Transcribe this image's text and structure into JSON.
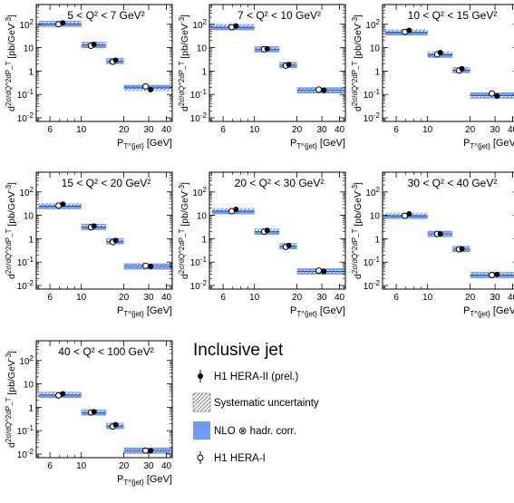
{
  "chart_data": [
    {
      "type": "scatter",
      "title": "5 < Q² < 7 GeV²",
      "xlabel": "P_T^jet [GeV]",
      "ylabel": "d²σ/dQ²dP_T [pb/GeV⁻³]",
      "x_scale": "log",
      "y_scale": "log",
      "xlim": [
        4.8,
        44
      ],
      "ylim": [
        0.007,
        700
      ],
      "x_ticks": [
        "6",
        "10",
        "20",
        "30",
        "40"
      ],
      "y_ticks": [
        "10^2",
        "10",
        "1",
        "10^-1",
        "10^-2"
      ],
      "bins": [
        [
          5,
          10
        ],
        [
          10,
          15
        ],
        [
          15,
          20
        ],
        [
          20,
          45
        ]
      ],
      "series": [
        {
          "name": "H1 HERA-II (prel.)",
          "x": [
            7.4,
            12.3,
            17.5,
            31.0
          ],
          "y": [
            115,
            14,
            2.9,
            0.16
          ]
        },
        {
          "name": "H1 HERA-I",
          "x": [
            6.9,
            11.7,
            16.7,
            28.5
          ],
          "y": [
            100,
            12,
            2.5,
            0.22
          ]
        },
        {
          "name": "NLO ⊗ hadr. corr.",
          "x": [
            7.1,
            12.1,
            17.1,
            30.0
          ],
          "y": [
            105,
            13,
            2.7,
            0.19
          ]
        }
      ]
    },
    {
      "type": "scatter",
      "title": "7 < Q² < 10 GeV²",
      "xlabel": "P_T^jet [GeV]",
      "ylabel": "d²σ/dQ²dP_T [pb/GeV⁻³]",
      "x_scale": "log",
      "y_scale": "log",
      "xlim": [
        4.8,
        44
      ],
      "ylim": [
        0.007,
        700
      ],
      "x_ticks": [
        "6",
        "10",
        "20",
        "30",
        "40"
      ],
      "y_ticks": [
        "10^2",
        "10",
        "1",
        "10^-1",
        "10^-2"
      ],
      "bins": [
        [
          5,
          10
        ],
        [
          10,
          15
        ],
        [
          15,
          20
        ],
        [
          20,
          45
        ]
      ],
      "series": [
        {
          "name": "H1 HERA-II (prel.)",
          "x": [
            7.4,
            12.3,
            17.5,
            31.0
          ],
          "y": [
            85,
            9.0,
            1.9,
            0.15
          ]
        },
        {
          "name": "H1 HERA-I",
          "x": [
            6.9,
            11.7,
            16.7,
            28.5
          ],
          "y": [
            75,
            8.5,
            1.7,
            0.16
          ]
        },
        {
          "name": "NLO ⊗ hadr. corr.",
          "x": [
            7.1,
            12.1,
            17.1,
            30.0
          ],
          "y": [
            75,
            8.5,
            1.8,
            0.15
          ]
        }
      ]
    },
    {
      "type": "scatter",
      "title": "10 < Q² < 15 GeV²",
      "xlabel": "P_T^jet [GeV]",
      "ylabel": "d²σ/dQ²dP_T [pb/GeV⁻³]",
      "x_scale": "log",
      "y_scale": "log",
      "xlim": [
        4.8,
        44
      ],
      "ylim": [
        0.007,
        700
      ],
      "x_ticks": [
        "6",
        "10",
        "20",
        "30",
        "40"
      ],
      "y_ticks": [
        "10^2",
        "10",
        "1",
        "10^-1",
        "10^-2"
      ],
      "bins": [
        [
          5,
          10
        ],
        [
          10,
          15
        ],
        [
          15,
          20
        ],
        [
          20,
          45
        ]
      ],
      "series": [
        {
          "name": "H1 HERA-II (prel.)",
          "x": [
            7.4,
            12.3,
            17.5,
            31.0
          ],
          "y": [
            55,
            6.2,
            1.25,
            0.085
          ]
        },
        {
          "name": "H1 HERA-I",
          "x": [
            6.9,
            11.7,
            16.7,
            28.5
          ],
          "y": [
            47,
            5.2,
            1.05,
            0.11
          ]
        },
        {
          "name": "NLO ⊗ hadr. corr.",
          "x": [
            7.1,
            12.1,
            17.1,
            30.0
          ],
          "y": [
            45,
            5.0,
            1.1,
            0.09
          ]
        }
      ]
    },
    {
      "type": "scatter",
      "title": "15 < Q² < 20 GeV²",
      "xlabel": "P_T^jet [GeV]",
      "ylabel": "d²σ/dQ²dP_T [pb/GeV⁻³]",
      "x_scale": "log",
      "y_scale": "log",
      "xlim": [
        4.8,
        44
      ],
      "ylim": [
        0.007,
        700
      ],
      "x_ticks": [
        "6",
        "10",
        "20",
        "30",
        "40"
      ],
      "y_ticks": [
        "10^2",
        "10",
        "1",
        "10^-1",
        "10^-2"
      ],
      "bins": [
        [
          5,
          10
        ],
        [
          10,
          15
        ],
        [
          15,
          20
        ],
        [
          20,
          45
        ]
      ],
      "series": [
        {
          "name": "H1 HERA-II (prel.)",
          "x": [
            7.4,
            12.3,
            17.5,
            31.0
          ],
          "y": [
            30,
            3.5,
            0.85,
            0.065
          ]
        },
        {
          "name": "H1 HERA-I",
          "x": [
            6.9,
            11.7,
            16.7,
            28.5
          ],
          "y": [
            26,
            3.1,
            0.72,
            0.07
          ]
        },
        {
          "name": "NLO ⊗ hadr. corr.",
          "x": [
            7.1,
            12.1,
            17.1,
            30.0
          ],
          "y": [
            25,
            3.2,
            0.78,
            0.065
          ]
        }
      ]
    },
    {
      "type": "scatter",
      "title": "20 < Q² < 30 GeV²",
      "xlabel": "P_T^jet [GeV]",
      "ylabel": "d²σ/dQ²dP_T [pb/GeV⁻³]",
      "x_scale": "log",
      "y_scale": "log",
      "xlim": [
        4.8,
        44
      ],
      "ylim": [
        0.007,
        700
      ],
      "x_ticks": [
        "6",
        "10",
        "20",
        "30",
        "40"
      ],
      "y_ticks": [
        "10^2",
        "10",
        "1",
        "10^-1",
        "10^-2"
      ],
      "bins": [
        [
          5,
          10
        ],
        [
          10,
          15
        ],
        [
          15,
          20
        ],
        [
          20,
          45
        ]
      ],
      "series": [
        {
          "name": "H1 HERA-II (prel.)",
          "x": [
            7.4,
            12.3,
            17.5,
            31.0
          ],
          "y": [
            18,
            2.3,
            0.52,
            0.04
          ]
        },
        {
          "name": "H1 HERA-I",
          "x": [
            6.9,
            11.7,
            16.7,
            28.5
          ],
          "y": [
            15,
            2.0,
            0.45,
            0.043
          ]
        },
        {
          "name": "NLO ⊗ hadr. corr.",
          "x": [
            7.1,
            12.1,
            17.1,
            30.0
          ],
          "y": [
            15,
            2.0,
            0.48,
            0.04
          ]
        }
      ]
    },
    {
      "type": "scatter",
      "title": "30 < Q² < 40 GeV²",
      "xlabel": "P_T^jet [GeV]",
      "ylabel": "d²σ/dQ²dP_T [pb/GeV⁻³]",
      "x_scale": "log",
      "y_scale": "log",
      "xlim": [
        4.8,
        44
      ],
      "ylim": [
        0.007,
        700
      ],
      "x_ticks": [
        "6",
        "10",
        "20",
        "30",
        "40"
      ],
      "y_ticks": [
        "10^2",
        "10",
        "1",
        "10^-1",
        "10^-2"
      ],
      "bins": [
        [
          5,
          10
        ],
        [
          10,
          15
        ],
        [
          15,
          20
        ],
        [
          20,
          45
        ]
      ],
      "series": [
        {
          "name": "H1 HERA-II (prel.)",
          "x": [
            7.4,
            12.3,
            17.5,
            31.0
          ],
          "y": [
            11.5,
            1.6,
            0.37,
            0.03
          ]
        },
        {
          "name": "H1 HERA-I",
          "x": [
            6.9,
            11.7,
            16.7,
            28.5
          ],
          "y": [
            9.5,
            1.6,
            0.35,
            0.028
          ]
        },
        {
          "name": "NLO ⊗ hadr. corr.",
          "x": [
            7.1,
            12.1,
            17.1,
            30.0
          ],
          "y": [
            9.5,
            1.6,
            0.36,
            0.028
          ]
        }
      ]
    },
    {
      "type": "scatter",
      "title": "40 < Q² < 100 GeV²",
      "xlabel": "P_T^jet [GeV]",
      "ylabel": "d²σ/dQ²dP_T [pb/GeV⁻³]",
      "x_scale": "log",
      "y_scale": "log",
      "xlim": [
        4.8,
        44
      ],
      "ylim": [
        0.007,
        700
      ],
      "x_ticks": [
        "6",
        "10",
        "20",
        "30",
        "40"
      ],
      "y_ticks": [
        "10^2",
        "10",
        "1",
        "10^-1",
        "10^-2"
      ],
      "bins": [
        [
          5,
          10
        ],
        [
          10,
          15
        ],
        [
          15,
          20
        ],
        [
          20,
          45
        ]
      ],
      "series": [
        {
          "name": "H1 HERA-II (prel.)",
          "x": [
            7.4,
            12.3,
            17.5,
            31.0
          ],
          "y": [
            3.8,
            0.65,
            0.18,
            0.014
          ]
        },
        {
          "name": "H1 HERA-I",
          "x": [
            6.9,
            11.7,
            16.7,
            28.5
          ],
          "y": [
            3.2,
            0.6,
            0.15,
            0.014
          ]
        },
        {
          "name": "NLO ⊗ hadr. corr.",
          "x": [
            7.1,
            12.1,
            17.1,
            30.0
          ],
          "y": [
            3.4,
            0.6,
            0.16,
            0.014
          ]
        }
      ]
    }
  ],
  "legend": {
    "title": "Inclusive jet",
    "items": [
      {
        "label": "H1 HERA-II (prel.)",
        "icon": "filled-circle-icon"
      },
      {
        "label": "Systematic uncertainty",
        "icon": "hatched-box-icon"
      },
      {
        "label": "NLO ⊗ hadr. corr.",
        "icon": "blue-box-icon"
      },
      {
        "label": "H1 HERA-I",
        "icon": "open-circle-icon"
      }
    ]
  },
  "colors": {
    "nlo_band": "#6e9cf5",
    "hatch": "#555555",
    "markers": "#000000"
  }
}
